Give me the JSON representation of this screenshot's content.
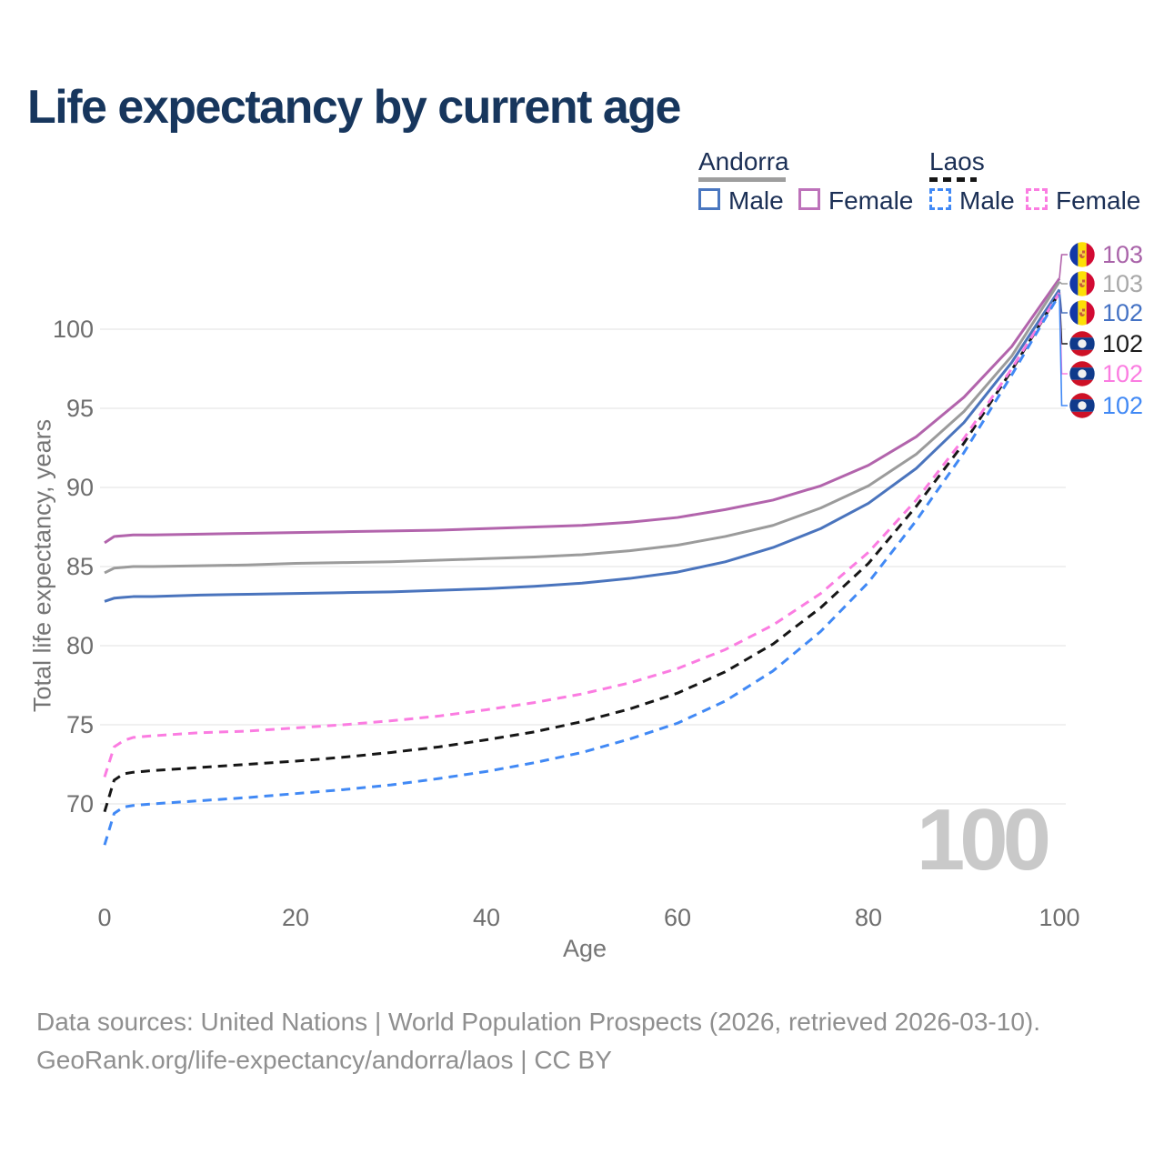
{
  "title": "Life expectancy by current age",
  "watermark_age": "100",
  "legend": {
    "groups": [
      {
        "label": "Andorra",
        "line_style": "solid",
        "underline_color": "#9e9e9e",
        "items": [
          {
            "label": "Male",
            "color": "#4a77c0",
            "dashed": false
          },
          {
            "label": "Female",
            "color": "#bd72ba",
            "dashed": false
          }
        ]
      },
      {
        "label": "Laos",
        "line_style": "dashed",
        "underline_color": "#161616",
        "items": [
          {
            "label": "Male",
            "color": "#4189f5",
            "dashed": true
          },
          {
            "label": "Female",
            "color": "#fb7ce1",
            "dashed": true
          }
        ]
      }
    ]
  },
  "side_labels": [
    {
      "value": "103",
      "color": "#a963a9",
      "flag": "andorra"
    },
    {
      "value": "103",
      "color": "#a8a8a8",
      "flag": "andorra"
    },
    {
      "value": "102",
      "color": "#4472c4",
      "flag": "andorra"
    },
    {
      "value": "102",
      "color": "#1a1a1a",
      "flag": "laos"
    },
    {
      "value": "102",
      "color": "#fb7ce1",
      "flag": "laos"
    },
    {
      "value": "102",
      "color": "#4189f5",
      "flag": "laos"
    }
  ],
  "chart_data": {
    "type": "line",
    "title": "Life expectancy by current age",
    "xlabel": "Age",
    "ylabel": "Total life expectancy, years",
    "xlim": [
      0,
      100
    ],
    "ylim": [
      66,
      104
    ],
    "xticks": [
      0,
      20,
      40,
      60,
      80,
      100
    ],
    "yticks": [
      70,
      75,
      80,
      85,
      90,
      95,
      100
    ],
    "grid": "horizontal",
    "legend_position": "top-right",
    "x": [
      0,
      1,
      2,
      3,
      4,
      5,
      10,
      15,
      20,
      25,
      30,
      35,
      40,
      45,
      50,
      55,
      60,
      65,
      70,
      75,
      80,
      85,
      90,
      95,
      100
    ],
    "series": [
      {
        "name": "Andorra Female",
        "country": "Andorra",
        "sex": "Female",
        "color": "#b264ac",
        "dash": false,
        "end_label": 103,
        "values": [
          86.5,
          86.9,
          86.95,
          87.0,
          87.0,
          87.0,
          87.05,
          87.1,
          87.15,
          87.2,
          87.25,
          87.3,
          87.4,
          87.5,
          87.6,
          87.8,
          88.1,
          88.6,
          89.2,
          90.1,
          91.4,
          93.2,
          95.7,
          98.9,
          103.2
        ]
      },
      {
        "name": "Andorra Both sexes",
        "country": "Andorra",
        "sex": "Both",
        "color": "#9b9b9b",
        "dash": false,
        "end_label": 103,
        "values": [
          84.6,
          84.9,
          84.95,
          85.0,
          85.0,
          85.0,
          85.05,
          85.1,
          85.2,
          85.25,
          85.3,
          85.4,
          85.5,
          85.6,
          85.75,
          86.0,
          86.35,
          86.9,
          87.6,
          88.7,
          90.1,
          92.1,
          94.8,
          98.3,
          103.0
        ]
      },
      {
        "name": "Andorra Male",
        "country": "Andorra",
        "sex": "Male",
        "color": "#4a74bd",
        "dash": false,
        "end_label": 102,
        "values": [
          82.8,
          83.0,
          83.05,
          83.1,
          83.1,
          83.1,
          83.2,
          83.25,
          83.3,
          83.35,
          83.4,
          83.5,
          83.6,
          83.75,
          83.95,
          84.25,
          84.65,
          85.3,
          86.2,
          87.4,
          89.0,
          91.2,
          94.1,
          97.9,
          102.5
        ]
      },
      {
        "name": "Laos Both sexes",
        "country": "Laos",
        "sex": "Both",
        "color": "#161616",
        "dash": true,
        "end_label": 102,
        "values": [
          69.5,
          71.5,
          71.9,
          72.0,
          72.05,
          72.1,
          72.3,
          72.5,
          72.7,
          72.95,
          73.25,
          73.6,
          74.05,
          74.55,
          75.2,
          76.0,
          77.0,
          78.35,
          80.1,
          82.4,
          85.2,
          88.8,
          92.8,
          97.4,
          102.3
        ]
      },
      {
        "name": "Laos Female",
        "country": "Laos",
        "sex": "Female",
        "color": "#fb7ce1",
        "dash": true,
        "end_label": 102,
        "values": [
          71.7,
          73.6,
          74.0,
          74.2,
          74.25,
          74.3,
          74.5,
          74.6,
          74.8,
          75.0,
          75.25,
          75.55,
          75.95,
          76.4,
          76.95,
          77.65,
          78.55,
          79.75,
          81.3,
          83.3,
          85.9,
          89.2,
          93.1,
          97.5,
          102.3
        ]
      },
      {
        "name": "Laos Male",
        "country": "Laos",
        "sex": "Male",
        "color": "#4189f5",
        "dash": true,
        "end_label": 102,
        "values": [
          67.4,
          69.4,
          69.8,
          69.9,
          69.95,
          70.0,
          70.2,
          70.4,
          70.65,
          70.9,
          71.2,
          71.6,
          72.05,
          72.6,
          73.25,
          74.1,
          75.1,
          76.5,
          78.4,
          80.9,
          84.0,
          87.9,
          92.2,
          97.1,
          102.2
        ]
      }
    ]
  },
  "footer": {
    "line1": "Data sources: United Nations | World Population Prospects (2026, retrieved 2026-03-10).",
    "line2": "GeoRank.org/life-expectancy/andorra/laos | CC BY"
  }
}
